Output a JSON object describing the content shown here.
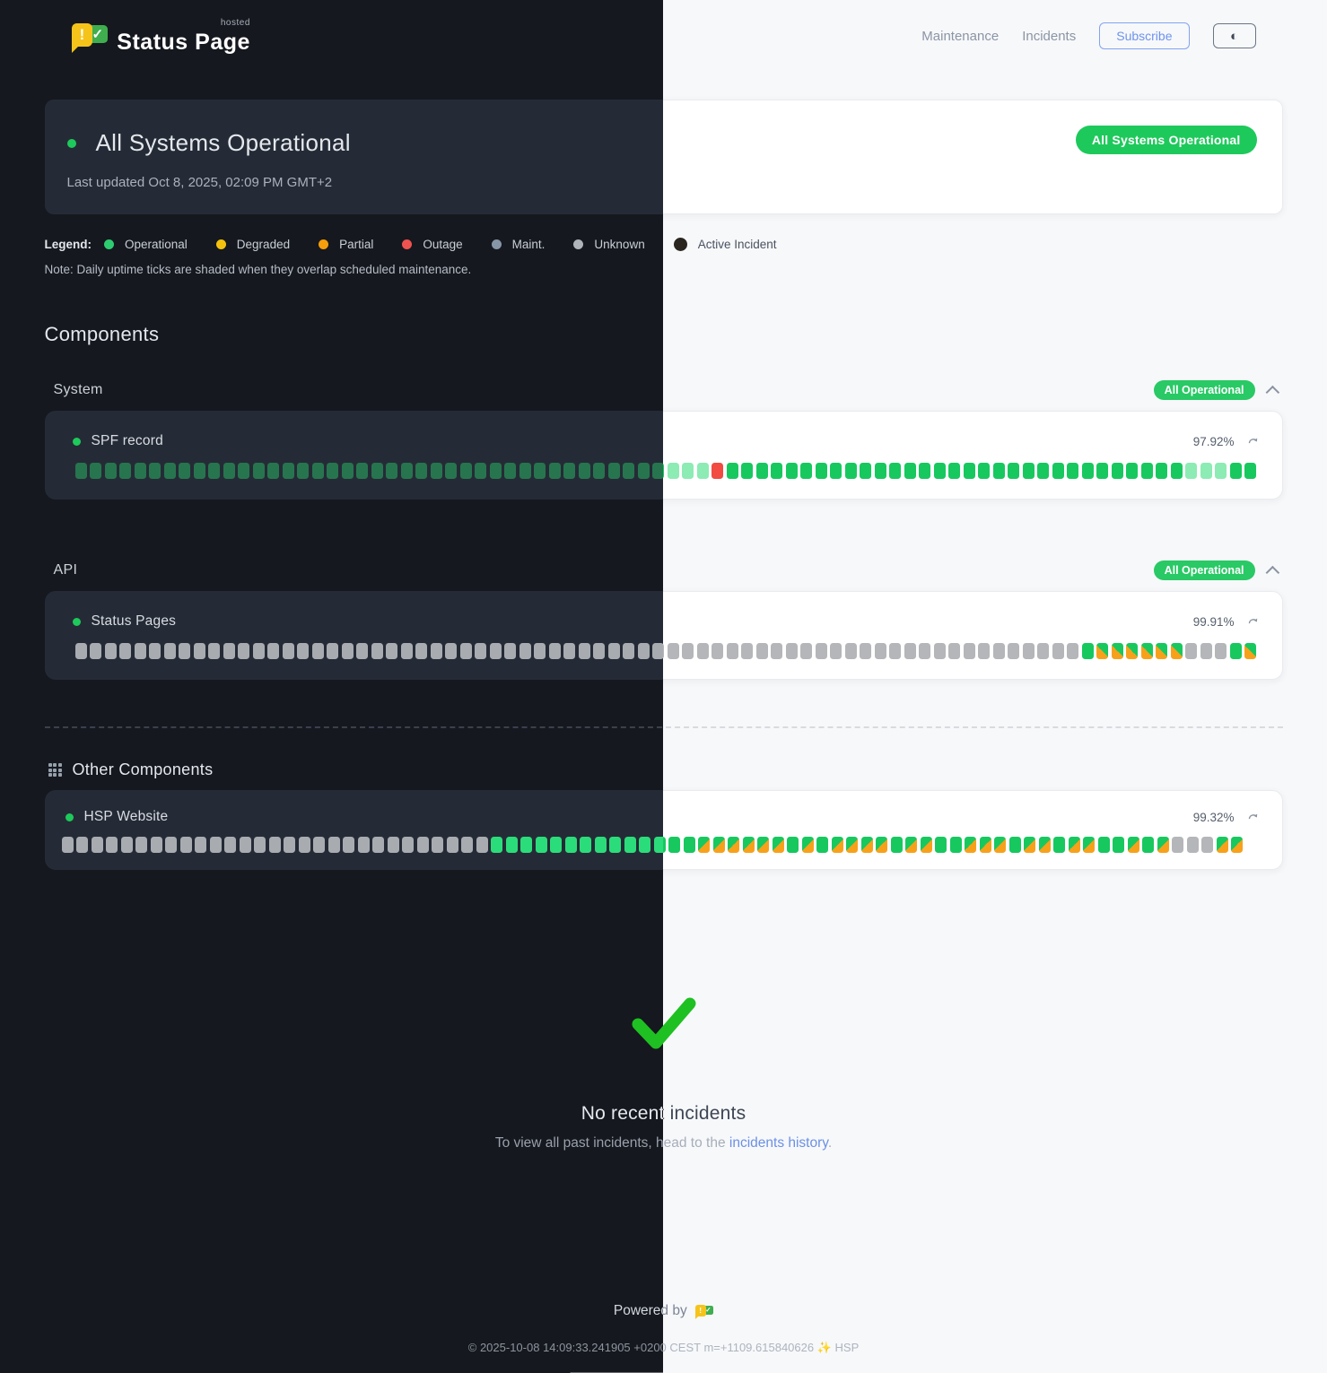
{
  "header": {
    "brand": {
      "name": "Status Page",
      "hosted_label": "hosted"
    },
    "nav": {
      "maintenance": "Maintenance",
      "incidents": "Incidents"
    },
    "subscribe_label": "Subscribe",
    "theme_toggle_icon": "half-circle"
  },
  "status_card": {
    "title": "All Systems Operational",
    "last_updated": "Last updated Oct 8, 2025, 02:09 PM GMT+2",
    "badge": "All Systems Operational",
    "badge_color": "#1ec95b"
  },
  "legend": {
    "label": "Legend:",
    "items": [
      {
        "label": "Operational",
        "color": "#2ecc71"
      },
      {
        "label": "Degraded",
        "color": "#f4c20d"
      },
      {
        "label": "Partial",
        "color": "#f59e0b"
      },
      {
        "label": "Outage",
        "color": "#ef5350"
      },
      {
        "label": "Maint.",
        "color": "#8696a7"
      },
      {
        "label": "Unknown",
        "color": "#aeb4ba"
      },
      {
        "label": "Active Incident",
        "color": "#2b2520"
      }
    ],
    "note": "Note: Daily uptime ticks are shaded when they overlap scheduled maintenance."
  },
  "components": {
    "heading": "Components",
    "groups": [
      {
        "name": "System",
        "badge": "All Operational",
        "items": [
          {
            "name": "SPF record",
            "uptime": "97.92%",
            "ticks": "oooooooooooooooooooooooooooooooooooooooommmdooooooooooooooooooooooooooooooommmoo"
          }
        ]
      },
      {
        "name": "API",
        "badge": "All Operational",
        "items": [
          {
            "name": "Status Pages",
            "uptime": "99.91%",
            "ticks": "uuuuuuuuuuuuuuuuuuuuuuuuuuuuuuuuuuuuuuuuuuuuuuuuuuuuuuuuuuuuuuuuuuuuossssssuuuos"
          }
        ]
      }
    ],
    "other": {
      "name": "Other Components",
      "items": [
        {
          "name": "HSP Website",
          "uptime": "99.32%",
          "ticks": "uuuuuuuuuuuuuuuuuuuuuuuuuuuuuOOOOOOOOOOOOOOzzzzzzOzOzzzzOzzOOzzzOzzOzzOOzOzuuuzz"
        }
      ]
    },
    "tick_legend_key": {
      "o": "operational",
      "O": "operational-bright",
      "m": "maintenance-shaded",
      "d": "outage",
      "u": "unknown",
      "s": "partial-split",
      "z": "partial-split"
    }
  },
  "incidents_section": {
    "title": "No recent incidents",
    "text_before_link": "To view all past incidents, head to the ",
    "link_text": "incidents history",
    "text_after_link": "."
  },
  "footer": {
    "powered_by": "Powered by",
    "copyright": "© 2025-10-08 14:09:33.241905 +0200 CEST m=+1109.615840626 ✨ HSP"
  },
  "colors": {
    "accent_green": "#1ec95b",
    "tick_green_light": "#17c85f",
    "tick_green_dark_muted": "#27754f",
    "tick_mint": "#8debb4",
    "tick_red": "#f14b42",
    "tick_gray": "#b4b6b9",
    "tick_orange": "#f7a11b",
    "link_blue": "#6b90e4",
    "subscribe_blue": "#6d93ee",
    "dark_bg": "#15181e",
    "light_bg": "#f7f8fa"
  }
}
